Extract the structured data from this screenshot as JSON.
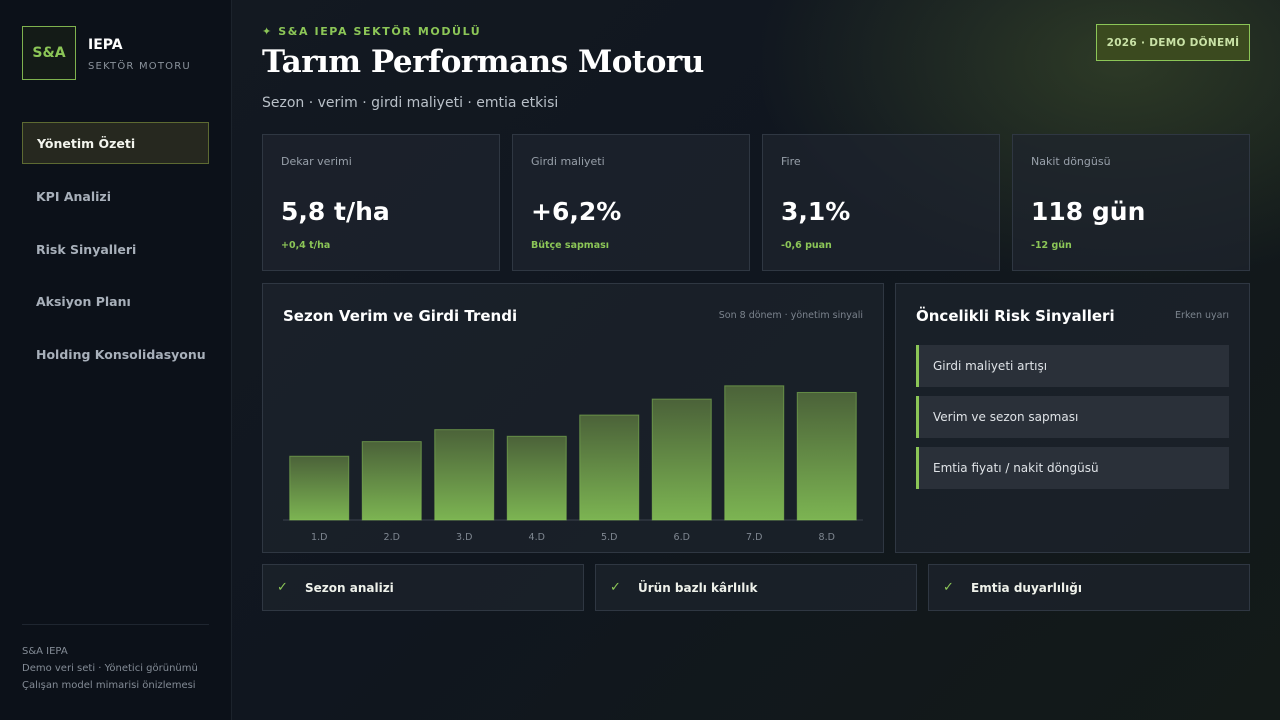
{
  "brand": {
    "logo": "S&A",
    "name": "IEPA",
    "subtitle": "SEKTÖR MOTORU"
  },
  "nav": [
    {
      "label": "Yönetim Özeti",
      "active": true
    },
    {
      "label": "KPI Analizi",
      "active": false
    },
    {
      "label": "Risk Sinyalleri",
      "active": false
    },
    {
      "label": "Aksiyon Planı",
      "active": false
    },
    {
      "label": "Holding Konsolidasyonu",
      "active": false
    }
  ],
  "footer": [
    "S&A IEPA",
    "Demo veri seti · Yönetici görünümü",
    "Çalışan model mimarisi önizlemesi"
  ],
  "header": {
    "kicker": "✦ S&A IEPA SEKTÖR MODÜLÜ",
    "title": "Tarım Performans Motoru",
    "subtitle": "Sezon · verim · girdi maliyeti · emtia etkisi",
    "badge": "2026 · DEMO DÖNEMİ"
  },
  "kpis": [
    {
      "label": "Dekar verimi",
      "value": "5,8 t/ha",
      "delta": "+0,4 t/ha"
    },
    {
      "label": "Girdi maliyeti",
      "value": "+6,2%",
      "delta": "Bütçe sapması"
    },
    {
      "label": "Fire",
      "value": "3,1%",
      "delta": "-0,6 puan"
    },
    {
      "label": "Nakit döngüsü",
      "value": "118 gün",
      "delta": "-12 gün"
    }
  ],
  "trend_panel": {
    "title": "Sezon Verim ve Girdi Trendi",
    "note": "Son 8 dönem · yönetim sinyali"
  },
  "chart_data": {
    "type": "bar",
    "categories": [
      "1.D",
      "2.D",
      "3.D",
      "4.D",
      "5.D",
      "6.D",
      "7.D",
      "8.D"
    ],
    "values": [
      48,
      59,
      68,
      63,
      79,
      91,
      101,
      96
    ],
    "title": "Sezon Verim ve Girdi Trendi",
    "xlabel": "",
    "ylabel": "",
    "ylim": [
      0,
      140
    ],
    "grid": false,
    "colors": {
      "bar_top": "#4b6239",
      "bar_bottom": "#7cb452",
      "bar_stroke": "#8cc657"
    }
  },
  "risk_panel": {
    "title": "Öncelikli Risk Sinyalleri",
    "note": "Erken uyarı",
    "items": [
      "Girdi maliyeti artışı",
      "Verim ve sezon sapması",
      "Emtia fiyatı / nakit döngüsü"
    ]
  },
  "checks": [
    {
      "icon": "✓",
      "label": "Sezon analizi"
    },
    {
      "icon": "✓",
      "label": "Ürün bazlı kârlılık"
    },
    {
      "icon": "✓",
      "label": "Emtia duyarlılığı"
    }
  ],
  "colors": {
    "accent": "#8cc657",
    "background": "#10161f",
    "sidebar": "#0c1119"
  }
}
